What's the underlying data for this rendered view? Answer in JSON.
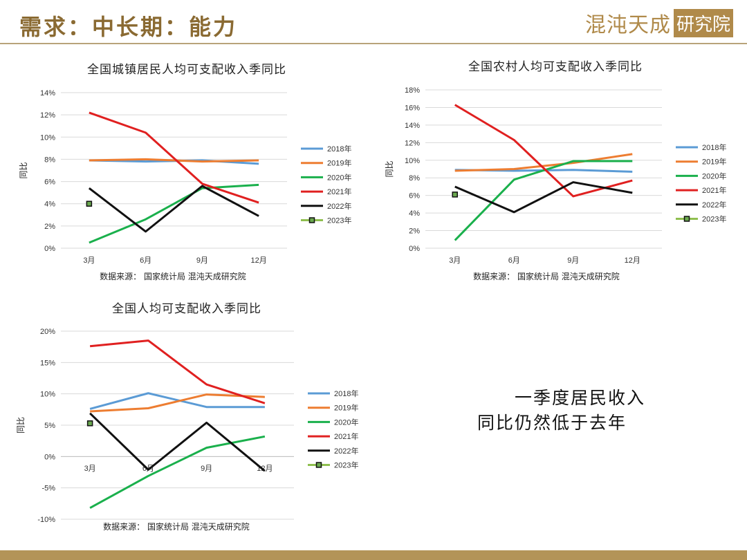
{
  "header": {
    "title": "需求：中长期：能力",
    "logo_text": "混沌天成",
    "logo_box": "研究院"
  },
  "colors": {
    "2018年": "#5b9bd5",
    "2019年": "#ed7d31",
    "2020年": "#1ab04c",
    "2021年": "#e02020",
    "2022年": "#111111",
    "2023年": "#8fbf4f"
  },
  "caption": {
    "line1": "一季度居民收入",
    "line2": "同比仍然低于去年"
  },
  "chart_data": [
    {
      "type": "line",
      "title": "全国城镇居民人均可支配收入季同比",
      "ylabel": "同比",
      "source": "数据来源： 国家统计局 混沌天成研究院",
      "categories": [
        "3月",
        "6月",
        "9月",
        "12月"
      ],
      "ylim": [
        0,
        14
      ],
      "yticks": [
        0,
        2,
        4,
        6,
        8,
        10,
        12,
        14
      ],
      "ytick_labels": [
        "0%",
        "2%",
        "4%",
        "6%",
        "8%",
        "10%",
        "12%",
        "14%"
      ],
      "series": [
        {
          "name": "2018年",
          "values": [
            7.9,
            7.8,
            7.9,
            7.6
          ]
        },
        {
          "name": "2019年",
          "values": [
            7.9,
            8.0,
            7.8,
            7.9
          ]
        },
        {
          "name": "2020年",
          "values": [
            0.5,
            2.6,
            5.4,
            5.7
          ]
        },
        {
          "name": "2021年",
          "values": [
            12.2,
            10.4,
            5.8,
            4.1
          ]
        },
        {
          "name": "2022年",
          "values": [
            5.4,
            1.5,
            5.6,
            2.9
          ]
        },
        {
          "name": "2023年",
          "values": [
            4.0,
            null,
            null,
            null
          ],
          "marker": true
        }
      ]
    },
    {
      "type": "line",
      "title": "全国农村人均可支配收入季同比",
      "ylabel": "同比",
      "source": "数据来源： 国家统计局 混沌天成研究院",
      "categories": [
        "3月",
        "6月",
        "9月",
        "12月"
      ],
      "ylim": [
        0,
        18
      ],
      "yticks": [
        0,
        2,
        4,
        6,
        8,
        10,
        12,
        14,
        16,
        18
      ],
      "ytick_labels": [
        "0%",
        "2%",
        "4%",
        "6%",
        "8%",
        "10%",
        "12%",
        "14%",
        "16%",
        "18%"
      ],
      "series": [
        {
          "name": "2018年",
          "values": [
            8.9,
            8.8,
            8.9,
            8.7
          ]
        },
        {
          "name": "2019年",
          "values": [
            8.8,
            9.0,
            9.7,
            10.7
          ]
        },
        {
          "name": "2020年",
          "values": [
            0.9,
            7.8,
            9.9,
            9.9
          ]
        },
        {
          "name": "2021年",
          "values": [
            16.3,
            12.3,
            5.9,
            7.7
          ]
        },
        {
          "name": "2022年",
          "values": [
            7.0,
            4.1,
            7.5,
            6.3
          ]
        },
        {
          "name": "2023年",
          "values": [
            6.1,
            null,
            null,
            null
          ],
          "marker": true
        }
      ]
    },
    {
      "type": "line",
      "title": "全国人均可支配收入季同比",
      "ylabel": "同比",
      "source": "数据来源： 国家统计局 混沌天成研究院",
      "categories": [
        "3月",
        "6月",
        "9月",
        "12月"
      ],
      "ylim": [
        -10,
        20
      ],
      "yticks": [
        -10,
        -5,
        0,
        5,
        10,
        15,
        20
      ],
      "ytick_labels": [
        "-10%",
        "-5%",
        "0%",
        "5%",
        "10%",
        "15%",
        "20%"
      ],
      "series": [
        {
          "name": "2018年",
          "values": [
            7.6,
            10.1,
            7.9,
            7.9
          ]
        },
        {
          "name": "2019年",
          "values": [
            7.2,
            7.7,
            9.9,
            9.5
          ]
        },
        {
          "name": "2020年",
          "values": [
            -8.2,
            -3.1,
            1.4,
            3.2
          ]
        },
        {
          "name": "2021年",
          "values": [
            17.6,
            18.5,
            11.5,
            8.5
          ]
        },
        {
          "name": "2022年",
          "values": [
            6.9,
            -2.1,
            5.4,
            -2.3
          ]
        },
        {
          "name": "2023年",
          "values": [
            5.3,
            null,
            null,
            null
          ],
          "marker": true
        }
      ]
    }
  ]
}
